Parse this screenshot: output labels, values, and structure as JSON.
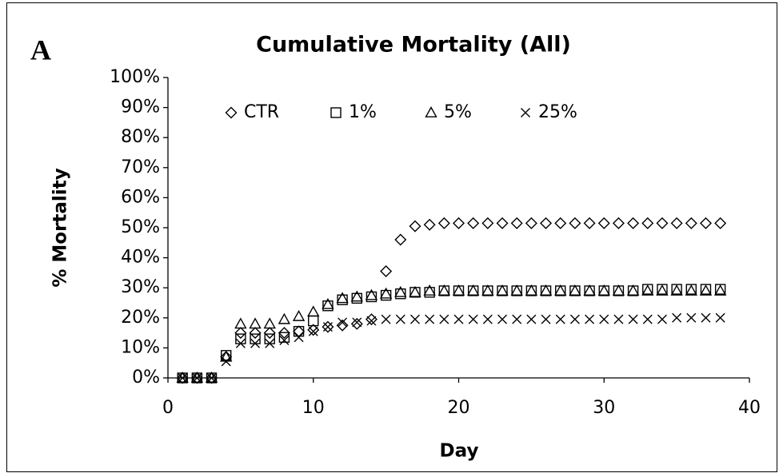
{
  "chart_data": {
    "type": "scatter",
    "panel_label": "A",
    "title": "Cumulative Mortality (All)",
    "x_label": "Day",
    "y_label": "% Mortality",
    "x": [
      1,
      2,
      3,
      4,
      5,
      6,
      7,
      8,
      9,
      10,
      11,
      12,
      13,
      14,
      15,
      16,
      17,
      18,
      19,
      20,
      21,
      22,
      23,
      24,
      25,
      26,
      27,
      28,
      29,
      30,
      31,
      32,
      33,
      34,
      35,
      36,
      37,
      38
    ],
    "series": [
      {
        "name": "CTR",
        "color": "#000000",
        "marker": "diamond",
        "values": [
          0,
          0,
          0,
          7,
          15,
          15,
          15,
          15,
          15.5,
          16,
          17,
          17.5,
          18,
          19.5,
          35.5,
          46,
          50.5,
          51,
          51.5,
          51.5,
          51.5,
          51.5,
          51.5,
          51.5,
          51.5,
          51.5,
          51.5,
          51.5,
          51.5,
          51.5,
          51.5,
          51.5,
          51.5,
          51.5,
          51.5,
          51.5,
          51.5,
          51.5
        ]
      },
      {
        "name": "1%",
        "color": "#000000",
        "marker": "square",
        "values": [
          0,
          0,
          0,
          7.5,
          13,
          13,
          13,
          13.5,
          15.5,
          19,
          24,
          26,
          26.5,
          27,
          27.5,
          28,
          28.5,
          28.5,
          29,
          29,
          29,
          29,
          29,
          29,
          29,
          29,
          29,
          29,
          29,
          29,
          29,
          29,
          29.5,
          29.5,
          29.5,
          29.5,
          29.5,
          29.5
        ]
      },
      {
        "name": "5%",
        "color": "#000000",
        "marker": "triangle",
        "values": [
          0,
          0,
          0,
          7,
          18,
          18,
          18,
          19.5,
          20.5,
          22,
          24.5,
          26.5,
          27,
          27.5,
          28,
          28.5,
          28.5,
          29,
          29,
          29,
          29,
          29,
          29,
          29,
          29,
          29,
          29,
          29,
          29,
          29,
          29,
          29,
          29,
          29,
          29,
          29,
          29,
          29
        ]
      },
      {
        "name": "25%",
        "color": "#000000",
        "marker": "x",
        "values": [
          0,
          0,
          0,
          5.5,
          11.5,
          11.5,
          11.5,
          12.5,
          13.5,
          15.5,
          17,
          18.5,
          18.5,
          19,
          19.5,
          19.5,
          19.5,
          19.5,
          19.5,
          19.5,
          19.5,
          19.5,
          19.5,
          19.5,
          19.5,
          19.5,
          19.5,
          19.5,
          19.5,
          19.5,
          19.5,
          19.5,
          19.5,
          19.5,
          20,
          20,
          20,
          20
        ]
      }
    ],
    "xlim": [
      0,
      40
    ],
    "xticks": [
      0,
      10,
      20,
      30,
      40
    ],
    "ylim": [
      0,
      100
    ],
    "yticks": [
      {
        "value": 0,
        "label": "0%"
      },
      {
        "value": 10,
        "label": "10%"
      },
      {
        "value": 20,
        "label": "20%"
      },
      {
        "value": 30,
        "label": "30%"
      },
      {
        "value": 40,
        "label": "40%"
      },
      {
        "value": 50,
        "label": "50%"
      },
      {
        "value": 60,
        "label": "60%"
      },
      {
        "value": 70,
        "label": "70%"
      },
      {
        "value": 80,
        "label": "80%"
      },
      {
        "value": 90,
        "label": "90%"
      },
      {
        "value": 100,
        "label": "100%"
      }
    ],
    "grid": false,
    "legend": "top"
  }
}
